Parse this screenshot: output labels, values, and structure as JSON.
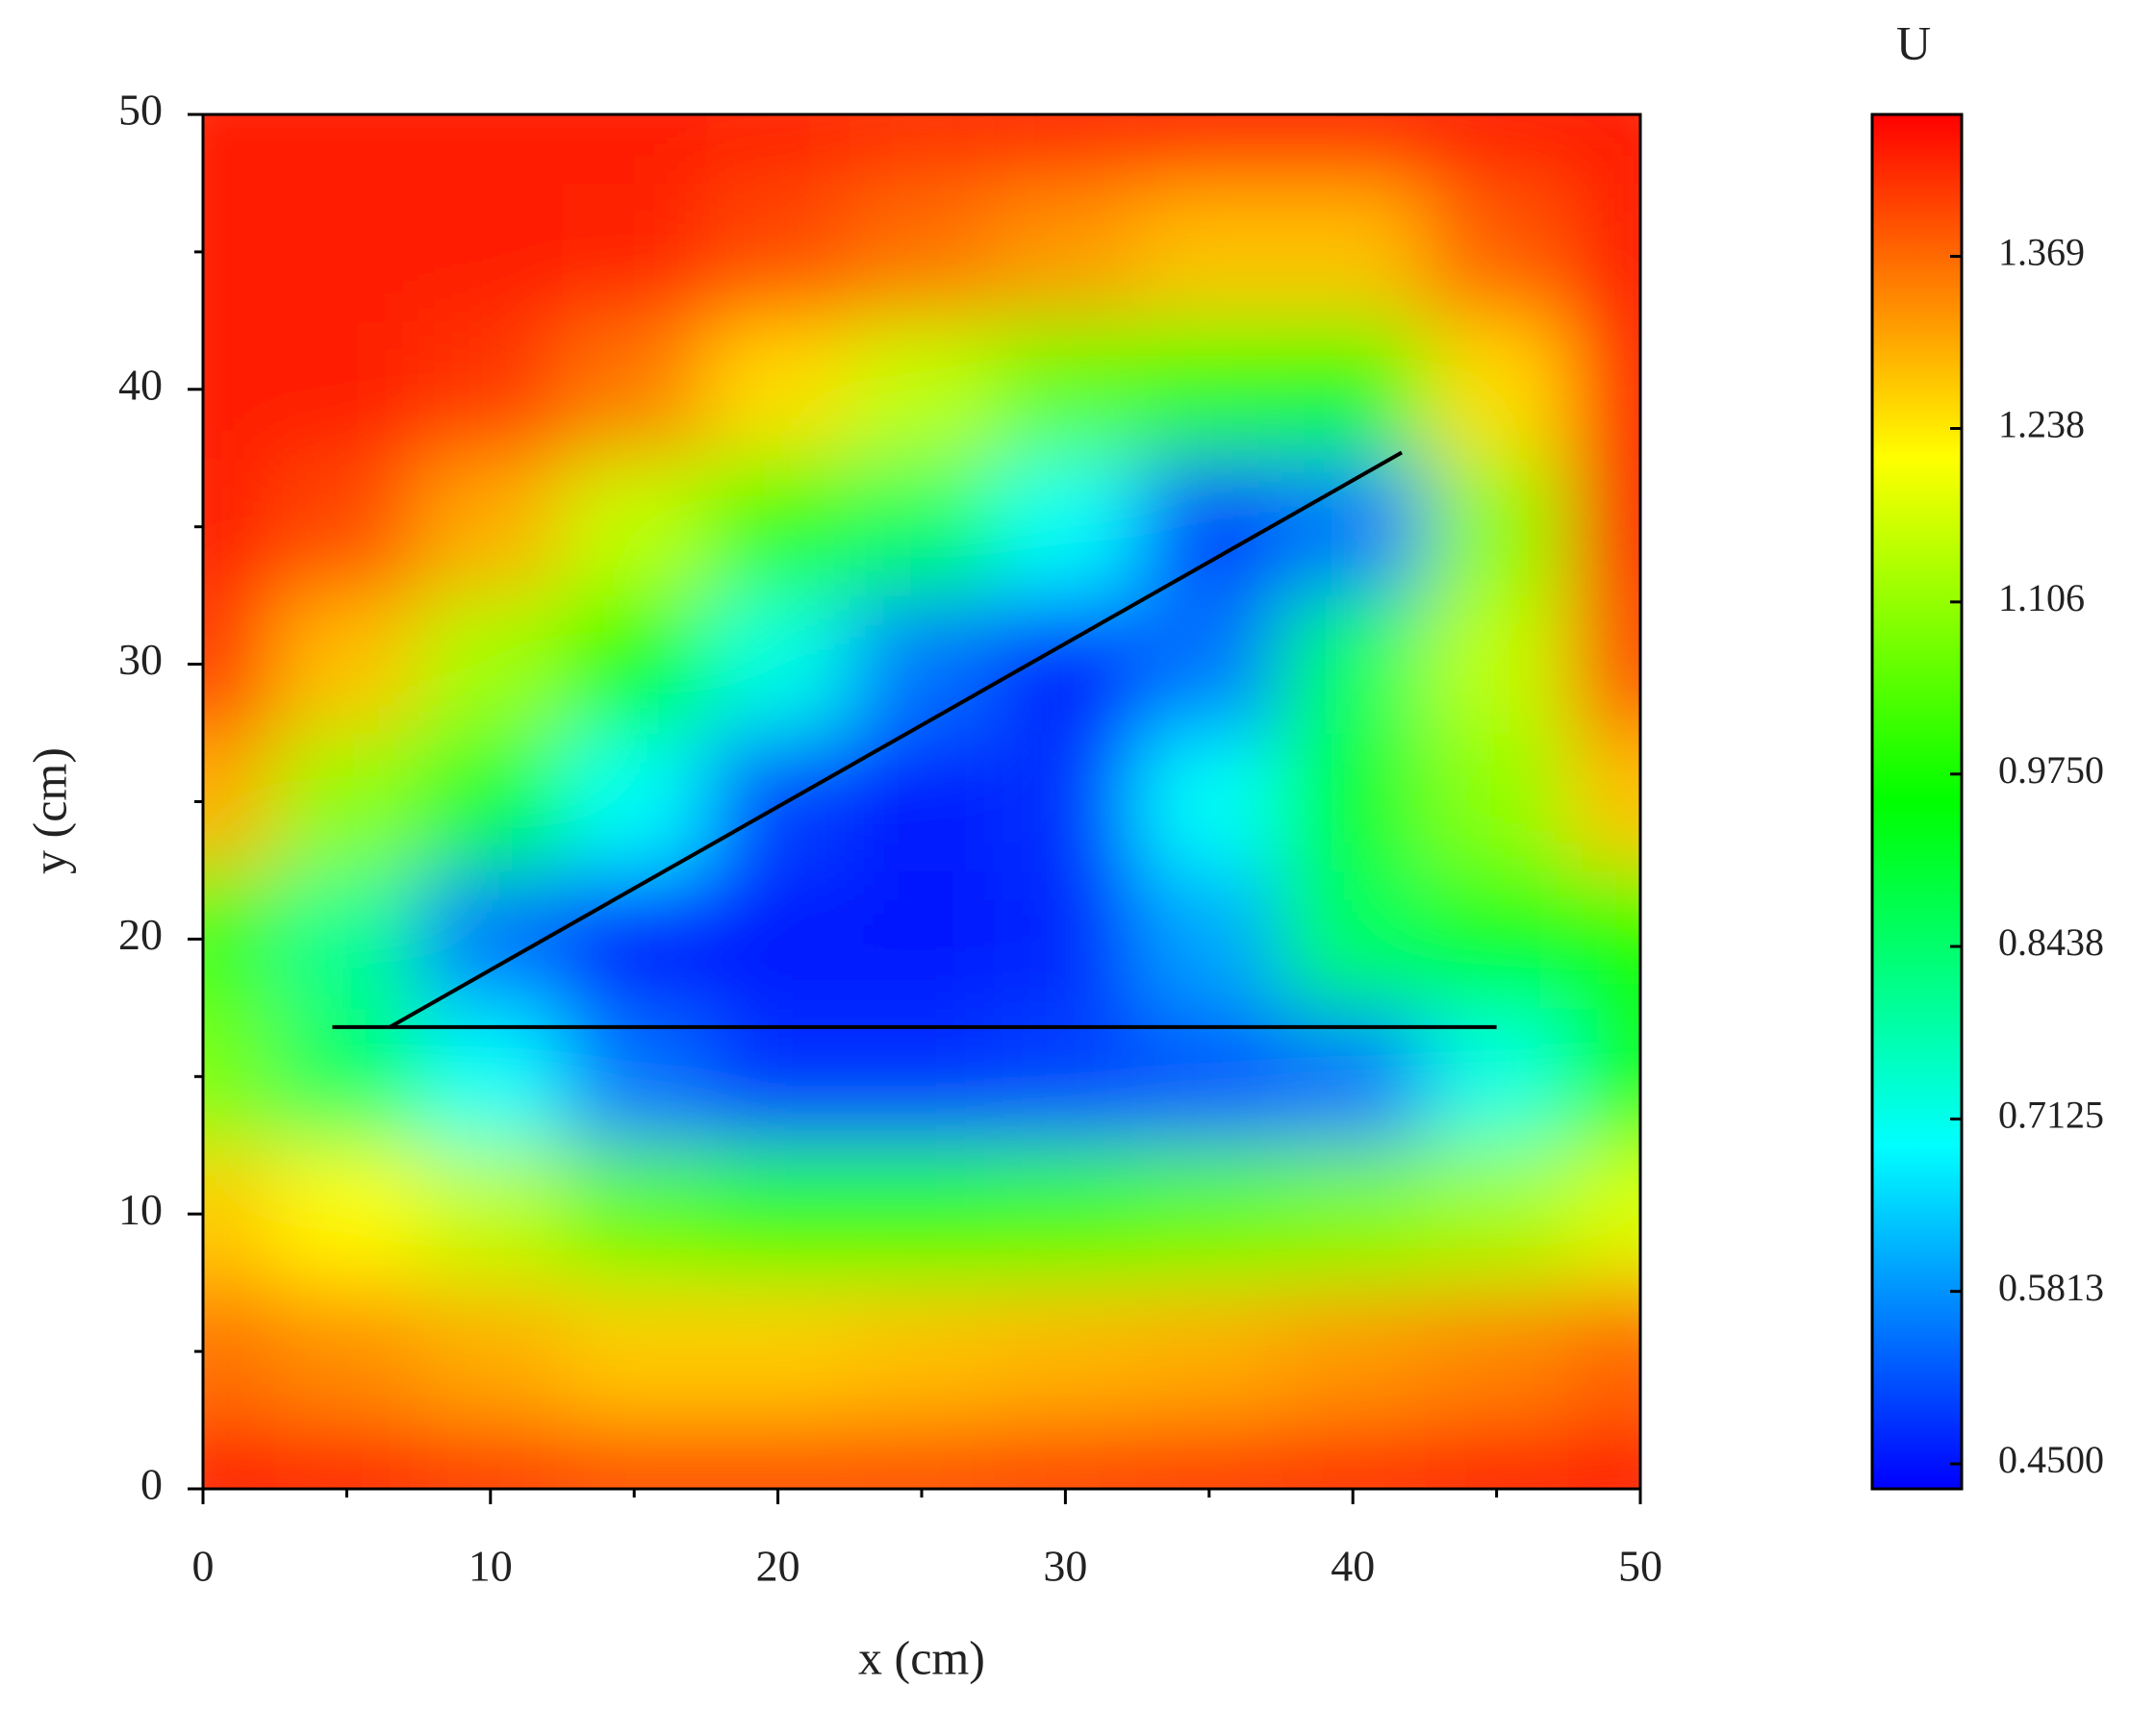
{
  "chart_data": {
    "type": "contour",
    "x_label": "x (cm)",
    "y_label": "y (cm)",
    "colorbar_title": "U",
    "x": [
      0,
      5,
      10,
      15,
      20,
      25,
      30,
      35,
      40,
      45,
      50
    ],
    "y": [
      0,
      5,
      10,
      15,
      20,
      25,
      30,
      35,
      40,
      45,
      50
    ],
    "z": [
      [
        1.45,
        1.44,
        1.42,
        1.4,
        1.4,
        1.4,
        1.41,
        1.42,
        1.43,
        1.44,
        1.45
      ],
      [
        1.36,
        1.33,
        1.3,
        1.27,
        1.27,
        1.28,
        1.29,
        1.3,
        1.32,
        1.34,
        1.37
      ],
      [
        1.27,
        1.22,
        1.15,
        1.05,
        1.0,
        1.0,
        1.02,
        1.05,
        1.08,
        1.12,
        1.18
      ],
      [
        1.08,
        0.85,
        0.7,
        0.55,
        0.48,
        0.48,
        0.5,
        0.52,
        0.55,
        0.72,
        0.95
      ],
      [
        1.02,
        0.8,
        0.55,
        0.45,
        0.45,
        0.45,
        0.47,
        0.6,
        0.85,
        0.92,
        0.98
      ],
      [
        1.3,
        1.1,
        0.9,
        0.7,
        0.5,
        0.45,
        0.48,
        0.7,
        0.9,
        1.1,
        1.28
      ],
      [
        1.42,
        1.28,
        1.12,
        0.95,
        0.72,
        0.55,
        0.46,
        0.55,
        0.85,
        1.15,
        1.4
      ],
      [
        1.45,
        1.4,
        1.3,
        1.15,
        1.0,
        0.85,
        0.7,
        0.5,
        0.55,
        1.1,
        1.45
      ],
      [
        1.45,
        1.45,
        1.42,
        1.35,
        1.25,
        1.15,
        1.05,
        1.0,
        0.98,
        1.25,
        1.45
      ],
      [
        1.45,
        1.45,
        1.45,
        1.44,
        1.4,
        1.36,
        1.32,
        1.28,
        1.28,
        1.38,
        1.45
      ],
      [
        1.45,
        1.45,
        1.45,
        1.45,
        1.44,
        1.43,
        1.44,
        1.45,
        1.45,
        1.45,
        1.45
      ]
    ],
    "colors": [
      "#0000ff",
      "#00ffff",
      "#00ff00",
      "#ffff00",
      "#ff0000"
    ],
    "zlim": [
      0.431,
      1.477
    ],
    "zticks": [
      {
        "value": 0.45,
        "label": "0.4500"
      },
      0.5813,
      0.7125,
      0.8438,
      {
        "value": 0.975,
        "label": "0.9750"
      },
      1.106,
      1.238,
      1.369
    ],
    "xlim": [
      0,
      50
    ],
    "ylim": [
      0,
      50
    ],
    "xticks": [
      0,
      10,
      20,
      30,
      40,
      50
    ],
    "yticks": [
      0,
      10,
      20,
      30,
      40,
      50
    ],
    "xminorticks": [
      5,
      15,
      25,
      35,
      45
    ],
    "yminorticks": [
      5,
      15,
      25,
      35,
      45
    ],
    "lines": [
      {
        "x": [
          4.5,
          45
        ],
        "y": [
          16.8,
          16.8
        ],
        "color": "#000000"
      },
      {
        "x": [
          6.5,
          41.7
        ],
        "y": [
          16.8,
          37.7
        ],
        "color": "#000000"
      }
    ]
  }
}
